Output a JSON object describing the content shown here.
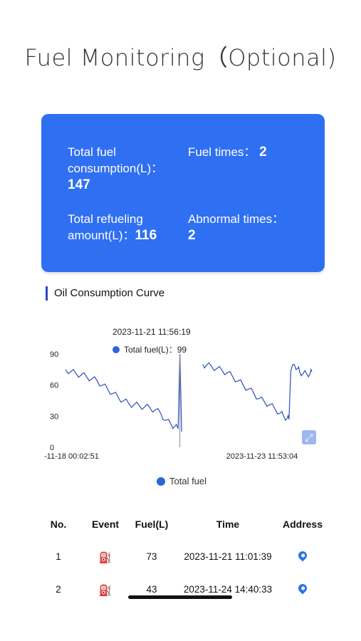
{
  "page": {
    "heading": "Fuel Monitoring（Optional)"
  },
  "summary": {
    "total_fuel_label_1": "Total fuel",
    "total_fuel_label_2": "consumption(L)：",
    "total_fuel_value": "147",
    "fuel_times_label": "Fuel times：",
    "fuel_times_value": "2",
    "refuel_label_1": "Total refueling",
    "refuel_label_2": "amount(L)：",
    "refuel_value": "116",
    "abnormal_label": "Abnormal times：",
    "abnormal_value": "2"
  },
  "section": {
    "title": "Oil Consumption Curve"
  },
  "chart_data": {
    "type": "line",
    "title": "",
    "series": [
      {
        "name": "Total fuel",
        "color": "#2c4fb8",
        "segments": [
          [
            [
              0,
              75
            ],
            [
              3,
              73
            ],
            [
              6,
              71
            ],
            [
              9,
              70
            ],
            [
              12,
              68
            ],
            [
              15,
              66
            ],
            [
              18,
              64
            ],
            [
              21,
              60
            ],
            [
              24,
              56
            ],
            [
              27,
              52
            ],
            [
              30,
              48
            ],
            [
              33,
              45
            ],
            [
              36,
              42
            ],
            [
              39,
              41
            ],
            [
              42,
              40
            ],
            [
              45,
              39
            ],
            [
              48,
              38
            ],
            [
              51,
              36
            ],
            [
              54,
              33
            ],
            [
              57,
              26
            ],
            [
              60,
              22
            ],
            [
              62,
              20
            ],
            [
              64,
              18
            ],
            [
              65,
              90
            ],
            [
              66,
              15
            ]
          ],
          [
            [
              78,
              80
            ],
            [
              80,
              79
            ],
            [
              83,
              78
            ],
            [
              86,
              76
            ],
            [
              89,
              74
            ],
            [
              92,
              72
            ],
            [
              95,
              68
            ],
            [
              98,
              64
            ],
            [
              101,
              60
            ],
            [
              104,
              56
            ],
            [
              107,
              52
            ],
            [
              110,
              47
            ],
            [
              113,
              44
            ],
            [
              116,
              41
            ],
            [
              119,
              37
            ],
            [
              122,
              33
            ],
            [
              124,
              30
            ],
            [
              126,
              28
            ],
            [
              127,
              27
            ],
            [
              128,
              73
            ],
            [
              130,
              80
            ],
            [
              132,
              76
            ],
            [
              133,
              73
            ],
            [
              135,
              71
            ],
            [
              137,
              71
            ],
            [
              139,
              71
            ],
            [
              140,
              73
            ]
          ]
        ]
      }
    ],
    "x_tick_labels": [
      "-11-18 00:02:51",
      "2023-11-23 11:53:04"
    ],
    "y_ticks": [
      0,
      30,
      60,
      90
    ],
    "ylim": [
      0,
      90
    ],
    "tooltip": {
      "time": "2023-11-21 11:56:19",
      "label": "Total fuel(L)：",
      "value": "99"
    },
    "legend": "Total fuel",
    "grid": false
  },
  "table": {
    "headers": {
      "no": "No.",
      "event": "Event",
      "fuel": "Fuel(L)",
      "time": "Time",
      "address": "Address"
    },
    "rows": [
      {
        "no": "1",
        "fuel": "73",
        "time": "2023-11-21 11:01:39"
      },
      {
        "no": "2",
        "fuel": "43",
        "time": "2023-11-24 14:40:33"
      }
    ]
  },
  "icons": {
    "event": "fuel-pump-icon",
    "address": "location-pin-icon",
    "expand": "expand-icon"
  },
  "colors": {
    "accent": "#2f6ff2",
    "line": "#2c4fb8",
    "event_icon": "#3dbb4f"
  }
}
